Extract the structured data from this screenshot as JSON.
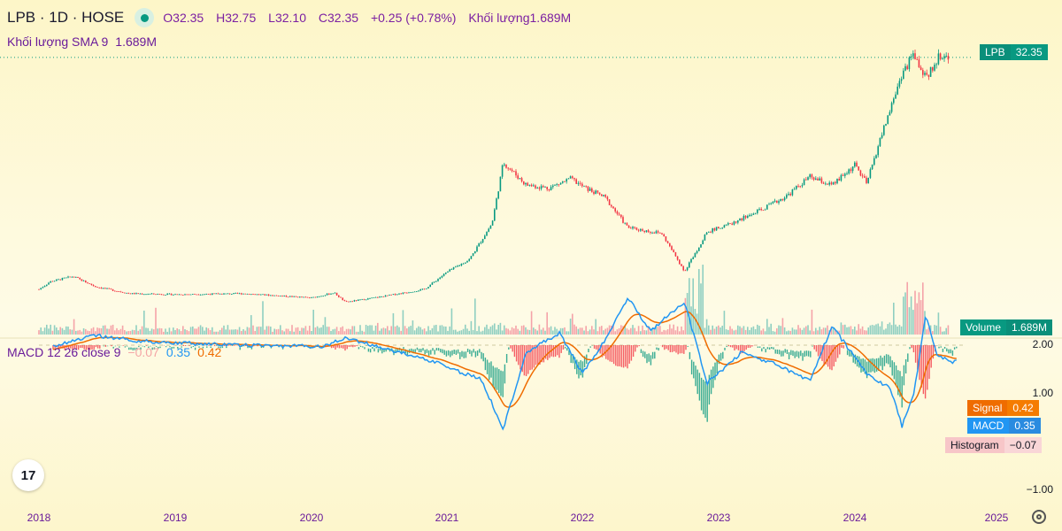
{
  "header": {
    "symbol_line": "LPB · 1D · HOSE",
    "ohlc": {
      "o_label": "O",
      "o_value": "32.35",
      "h_label": "H",
      "h_value": "32.75",
      "l_label": "L",
      "l_value": "32.10",
      "c_label": "C",
      "c_value": "32.35",
      "change": "+0.25 (+0.78%)",
      "volume_label": "Khối lượng",
      "volume_value": "1.689M"
    },
    "volume_sma_label": "Khối lượng SMA 9",
    "volume_sma_value": "1.689M"
  },
  "macd_legend": {
    "title": "MACD 12 26 close 9",
    "histogram": "−0.07",
    "macd": "0.35",
    "signal": "0.42"
  },
  "tags": {
    "price_symbol": "LPB",
    "price_value": "32.35",
    "volume_label": "Volume",
    "volume_value": "1.689M",
    "signal_label": "Signal",
    "signal_value": "0.42",
    "macd_label": "MACD",
    "macd_value": "0.35",
    "hist_label": "Histogram",
    "hist_value": "−0.07"
  },
  "logo_text": "17",
  "colors": {
    "up": "#089981",
    "down": "#f23645",
    "macd": "#2196f3",
    "signal": "#ef6c00",
    "vol_up": "#8fcfc1",
    "vol_down": "#f5a3a9",
    "axis_text": "#6a1b9a"
  },
  "chart_data": {
    "type": "candlestick",
    "symbol": "LPB",
    "interval": "1D",
    "exchange": "HOSE",
    "x_ticks": [
      "2018",
      "2019",
      "2020",
      "2021",
      "2022",
      "2023",
      "2024",
      "2025"
    ],
    "price_series_anchors": [
      [
        "2018-01",
        5.3
      ],
      [
        "2018-02",
        6.2
      ],
      [
        "2018-04",
        6.8
      ],
      [
        "2018-06",
        5.6
      ],
      [
        "2018-09",
        4.8
      ],
      [
        "2019-01",
        4.7
      ],
      [
        "2019-07",
        4.8
      ],
      [
        "2020-01",
        4.3
      ],
      [
        "2020-03",
        4.9
      ],
      [
        "2020-04",
        3.8
      ],
      [
        "2020-07",
        4.4
      ],
      [
        "2020-11",
        5.3
      ],
      [
        "2021-01",
        7.3
      ],
      [
        "2021-03",
        8.8
      ],
      [
        "2021-05",
        13.0
      ],
      [
        "2021-06",
        20.1
      ],
      [
        "2021-08",
        17.5
      ],
      [
        "2021-10",
        17.1
      ],
      [
        "2021-12",
        18.2
      ],
      [
        "2022-01",
        17.3
      ],
      [
        "2022-03",
        16.0
      ],
      [
        "2022-05",
        12.5
      ],
      [
        "2022-08",
        11.8
      ],
      [
        "2022-10",
        7.4
      ],
      [
        "2022-12",
        12.0
      ],
      [
        "2023-02",
        12.9
      ],
      [
        "2023-05",
        14.7
      ],
      [
        "2023-07",
        16.2
      ],
      [
        "2023-09",
        18.4
      ],
      [
        "2023-11",
        17.4
      ],
      [
        "2024-01",
        19.8
      ],
      [
        "2024-02",
        17.6
      ],
      [
        "2024-03",
        22.2
      ],
      [
        "2024-05",
        30.5
      ],
      [
        "2024-06",
        32.8
      ],
      [
        "2024-07",
        29.8
      ],
      [
        "2024-08",
        32.3
      ],
      [
        "2024-09",
        32.35
      ]
    ],
    "price_levels": {
      "current": 32.35
    },
    "macd_axis_labels": [
      "2.00",
      "1.00",
      "−1.00"
    ],
    "macd_axis_ticks": [
      2.0,
      1.0,
      -1.0
    ],
    "macd_series_anchors": [
      [
        "2018-01",
        0.1
      ],
      [
        "2018-06",
        -0.2
      ],
      [
        "2018-10",
        -0.08
      ],
      [
        "2019-06",
        0.0
      ],
      [
        "2020-02",
        0.03
      ],
      [
        "2020-04",
        -0.15
      ],
      [
        "2020-12",
        0.35
      ],
      [
        "2021-02",
        0.55
      ],
      [
        "2021-04",
        0.7
      ],
      [
        "2021-06",
        1.75
      ],
      [
        "2021-08",
        0.15
      ],
      [
        "2021-11",
        -0.25
      ],
      [
        "2022-01",
        0.6
      ],
      [
        "2022-03",
        -0.1
      ],
      [
        "2022-05",
        -1.0
      ],
      [
        "2022-07",
        -0.3
      ],
      [
        "2022-10",
        -0.9
      ],
      [
        "2022-12",
        0.8
      ],
      [
        "2023-03",
        0.15
      ],
      [
        "2023-06",
        0.4
      ],
      [
        "2023-09",
        0.75
      ],
      [
        "2023-11",
        -0.4
      ],
      [
        "2024-02",
        0.6
      ],
      [
        "2024-04",
        0.9
      ],
      [
        "2024-05",
        1.7
      ],
      [
        "2024-06",
        1.0
      ],
      [
        "2024-07",
        -0.6
      ],
      [
        "2024-08",
        0.2
      ],
      [
        "2024-09",
        0.35
      ]
    ]
  }
}
